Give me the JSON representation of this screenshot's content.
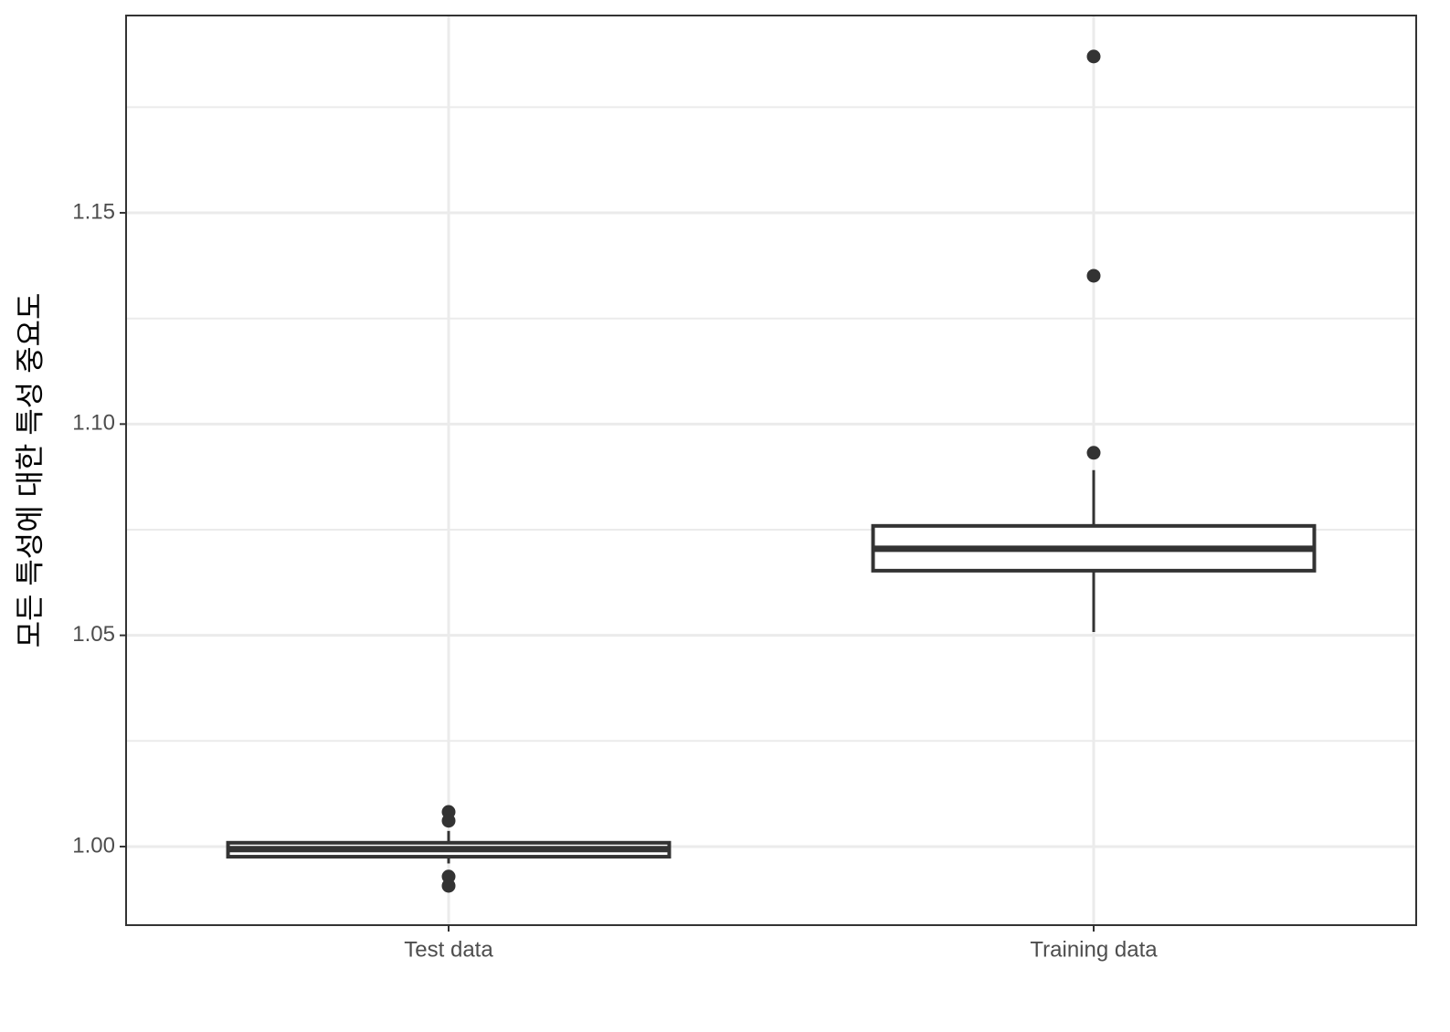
{
  "chart_data": {
    "type": "box",
    "y_label": "모든 특성에 대한 특성 중요도",
    "categories": [
      "Test data",
      "Training data"
    ],
    "boxes": [
      {
        "min": 0.996,
        "q1": 0.9976,
        "median": 0.9994,
        "q3": 1.0009,
        "max": 1.0037,
        "outliers": [
          1.0082,
          1.0061,
          0.9929,
          0.9907
        ]
      },
      {
        "min": 1.0508,
        "q1": 1.0653,
        "median": 1.0705,
        "q3": 1.0759,
        "max": 1.0891,
        "outliers": [
          1.0932,
          1.1351,
          1.187
        ]
      }
    ],
    "color": "#333333",
    "ylim": [
      0.9814,
      1.1967
    ],
    "yticks": [
      {
        "value": 1,
        "label": "1.00"
      },
      1.05,
      {
        "value": 1.1,
        "label": "1.10"
      },
      1.15
    ],
    "minor_yticks": [
      1.025,
      1.075,
      1.125,
      1.175
    ],
    "grid": true
  }
}
